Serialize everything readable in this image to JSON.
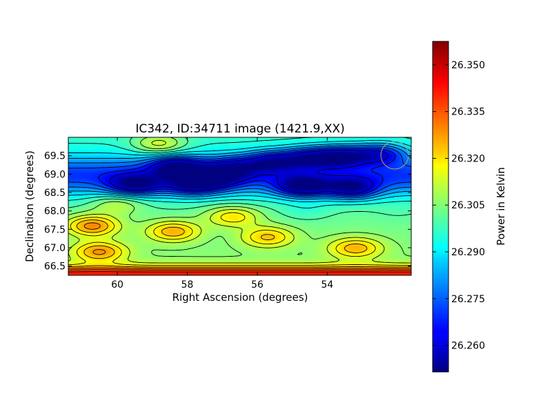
{
  "chart_data": {
    "type": "heatmap",
    "title": "IC342, ID:34711 image (1421.9,XX)",
    "xlabel": "Right Ascension (degrees)",
    "ylabel": "Declination (degrees)",
    "xlim": [
      61.4,
      51.6
    ],
    "ylim": [
      66.25,
      70.0
    ],
    "x_ticks": [
      60,
      58,
      56,
      54
    ],
    "x_tick_labels": [
      "60",
      "58",
      "56",
      "54"
    ],
    "y_ticks": [
      66.5,
      67.0,
      67.5,
      68.0,
      68.5,
      69.0,
      69.5
    ],
    "y_tick_labels": [
      "66.5",
      "67.0",
      "67.5",
      "68.0",
      "68.5",
      "69.0",
      "69.5"
    ],
    "colorbar": {
      "label": "Power in Kelvin",
      "range": [
        26.2515,
        26.3575
      ],
      "ticks": [
        26.35,
        26.335,
        26.32,
        26.305,
        26.29,
        26.275,
        26.26
      ],
      "tick_labels": [
        "26.350",
        "26.335",
        "26.320",
        "26.305",
        "26.290",
        "26.275",
        "26.260"
      ],
      "colormap": "jet"
    },
    "contours": "black",
    "features": [
      {
        "x": 53.6,
        "y": 69.48,
        "value": 26.258
      },
      {
        "x": 54.7,
        "y": 68.65,
        "value": 26.258
      },
      {
        "x": 58.3,
        "y": 69.2,
        "value": 26.262
      },
      {
        "x": 57.2,
        "y": 68.9,
        "value": 26.27
      },
      {
        "x": 53.3,
        "y": 68.6,
        "value": 26.262
      },
      {
        "x": 57.85,
        "y": 68.7,
        "value": 26.268
      },
      {
        "x": 55.6,
        "y": 69.35,
        "value": 26.268
      },
      {
        "x": 54.55,
        "y": 69.45,
        "value": 26.266
      },
      {
        "x": 52.5,
        "y": 69.55,
        "value": 26.266
      },
      {
        "x": 59.5,
        "y": 68.7,
        "value": 26.264
      },
      {
        "x": 56.7,
        "y": 69.2,
        "value": 26.276
      },
      {
        "x": 60.7,
        "y": 67.6,
        "value": 26.338
      },
      {
        "x": 60.5,
        "y": 66.9,
        "value": 26.334
      },
      {
        "x": 58.4,
        "y": 67.45,
        "value": 26.332
      },
      {
        "x": 56.7,
        "y": 67.85,
        "value": 26.326
      },
      {
        "x": 55.7,
        "y": 67.3,
        "value": 26.328
      },
      {
        "x": 53.2,
        "y": 67.0,
        "value": 26.33
      },
      {
        "x": 58.8,
        "y": 69.8,
        "value": 26.326
      },
      {
        "x": 60.0,
        "y": 68.2,
        "value": 26.318
      },
      {
        "x": 54.6,
        "y": 68.0,
        "value": 26.296
      },
      {
        "x": 53.9,
        "y": 68.3,
        "value": 26.302
      },
      {
        "x": 52.0,
        "y": 67.9,
        "value": 26.3
      }
    ]
  }
}
